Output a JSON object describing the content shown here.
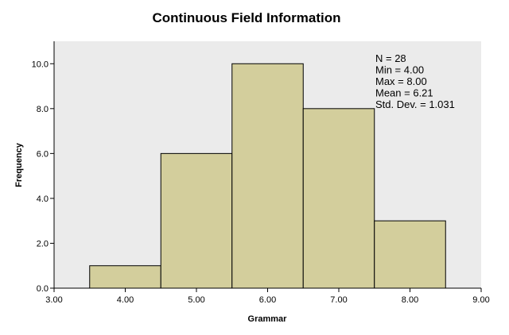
{
  "chart_data": {
    "type": "bar",
    "subtype": "histogram",
    "title": "Continuous Field Information",
    "xlabel": "Grammar",
    "ylabel": "Frequency",
    "xlim": [
      3.0,
      9.0
    ],
    "ylim": [
      0,
      11
    ],
    "x_ticks": [
      "3.00",
      "4.00",
      "5.00",
      "6.00",
      "7.00",
      "8.00",
      "9.00"
    ],
    "y_ticks": [
      "0.0",
      "2.0",
      "4.0",
      "6.0",
      "8.0",
      "10.0"
    ],
    "bins": [
      {
        "center": 4.0,
        "start": 3.5,
        "end": 4.5,
        "value": 1
      },
      {
        "center": 5.0,
        "start": 4.5,
        "end": 5.5,
        "value": 6
      },
      {
        "center": 6.0,
        "start": 5.5,
        "end": 6.5,
        "value": 10
      },
      {
        "center": 7.0,
        "start": 6.5,
        "end": 7.5,
        "value": 8
      },
      {
        "center": 8.0,
        "start": 7.5,
        "end": 8.5,
        "value": 3
      }
    ],
    "stats": [
      "N = 28",
      "Min = 4.00",
      "Max = 8.00",
      "Mean = 6.21",
      "Std. Dev. = 1.031"
    ],
    "grid": false,
    "colors": {
      "plot_background": "#ebebeb",
      "bar_fill": "#d3ce9c",
      "bar_stroke": "#000000",
      "axis": "#000000"
    }
  }
}
